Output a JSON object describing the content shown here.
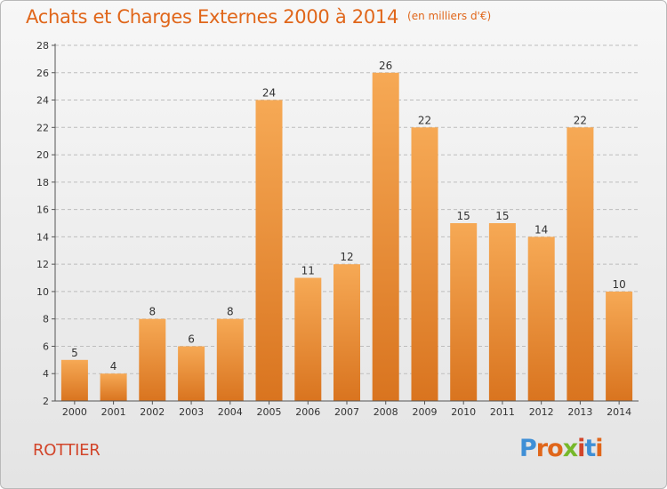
{
  "title": "Achats et Charges Externes 2000 à 2014",
  "unit": "(en milliers d'€)",
  "commune": "ROTTIER",
  "logo": {
    "text": "Proxiti",
    "letters": [
      "P",
      "r",
      "o",
      "x",
      "i",
      "t",
      "i"
    ],
    "colors": [
      "#3f8fd6",
      "#e0661a",
      "#e0661a",
      "#76b82a",
      "#d2452a",
      "#3f8fd6",
      "#e0661a"
    ]
  },
  "colors": {
    "bar_light": "#f6a955",
    "bar_dark": "#d9741f",
    "accent": "#e0661a",
    "axis": "#555555",
    "grid": "#bdbdbd"
  },
  "chart_data": {
    "type": "bar",
    "title": "Achats et Charges Externes 2000 à 2014",
    "ylabel": "en milliers d'€",
    "categories": [
      "2000",
      "2001",
      "2002",
      "2003",
      "2004",
      "2005",
      "2006",
      "2007",
      "2008",
      "2009",
      "2010",
      "2011",
      "2012",
      "2013",
      "2014"
    ],
    "values": [
      5,
      4,
      8,
      6,
      8,
      24,
      11,
      12,
      26,
      22,
      15,
      15,
      14,
      22,
      10
    ],
    "ylim": [
      2,
      28
    ],
    "yticks": [
      2,
      4,
      6,
      8,
      10,
      12,
      14,
      16,
      18,
      20,
      22,
      24,
      26,
      28
    ],
    "grid": true
  }
}
